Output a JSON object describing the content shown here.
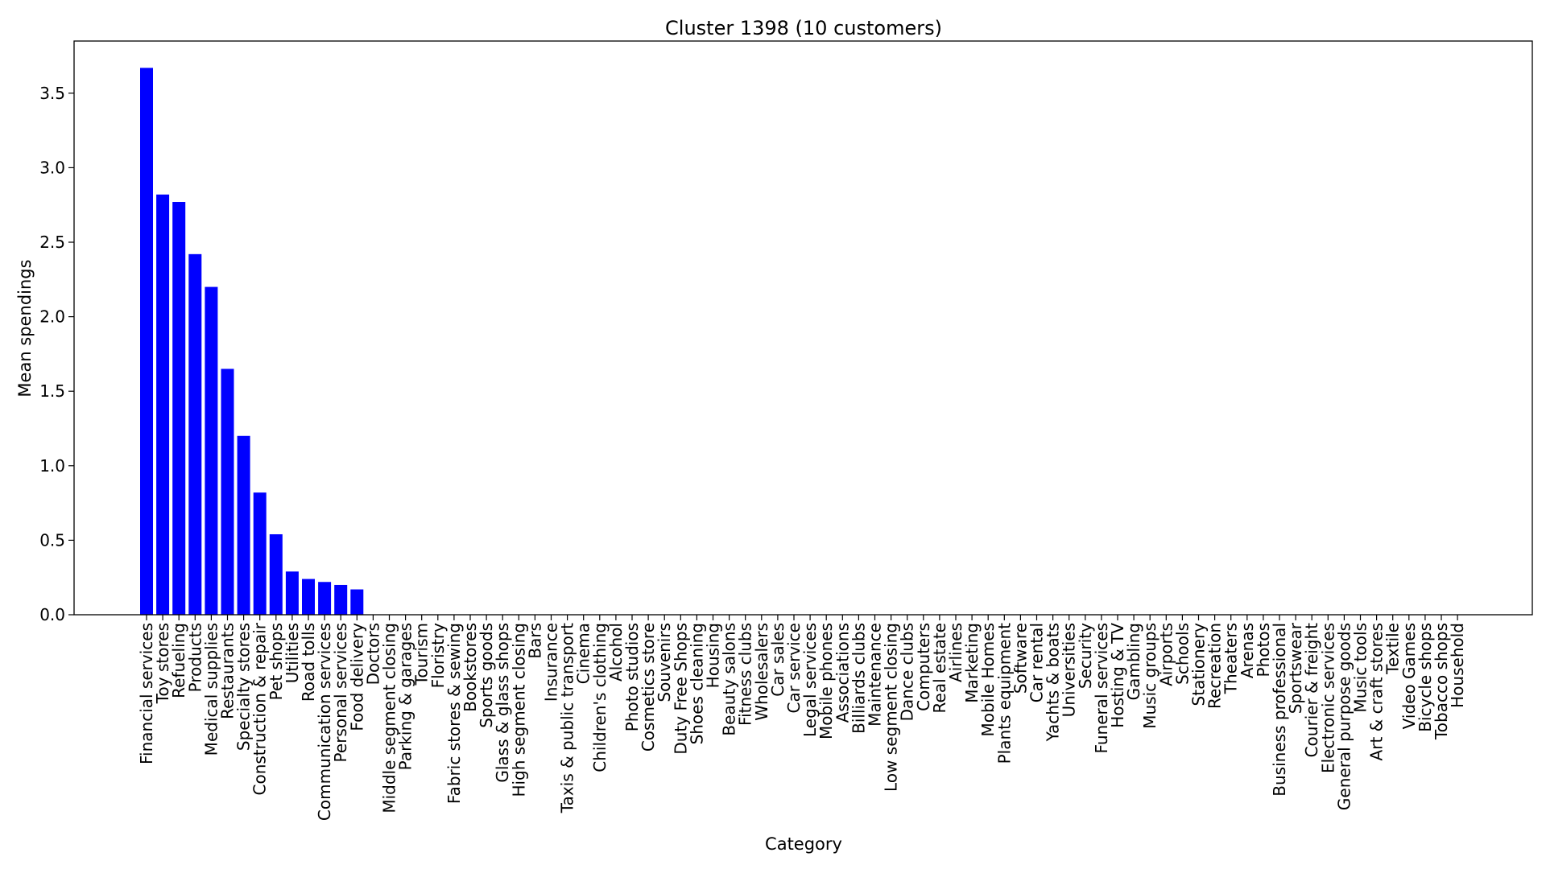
{
  "chart_data": {
    "type": "bar",
    "title": "Cluster 1398 (10 customers)",
    "xlabel": "Category",
    "ylabel": "Mean spendings",
    "ylim": [
      0,
      3.85
    ],
    "yticks": [
      "0.0",
      "0.5",
      "1.0",
      "1.5",
      "2.0",
      "2.5",
      "3.0",
      "3.5"
    ],
    "bar_color": "#0000ff",
    "grid": false,
    "categories": [
      "Financial services",
      "Toy stores",
      "Refueling",
      "Products",
      "Medical supplies",
      "Restaurants",
      "Specialty stores",
      "Construction & repair",
      "Pet shops",
      "Utilities",
      "Road tolls",
      "Communication services",
      "Personal services",
      "Food delivery",
      "Doctors",
      "Middle segment closing",
      "Parking & garages",
      "Tourism",
      "Floristry",
      "Fabric stores & sewing",
      "Bookstores",
      "Sports goods",
      "Glass & glass shops",
      "High segment closing",
      "Bars",
      "Insurance",
      "Taxis & public transport",
      "Cinema",
      "Children's clothing",
      "Alcohol",
      "Photo studios",
      "Cosmetics store",
      "Souvenirs",
      "Duty Free Shops",
      "Shoes cleaning",
      "Housing",
      "Beauty salons",
      "Fitness clubs",
      "Wholesalers",
      "Car sales",
      "Car service",
      "Legal services",
      "Mobile phones",
      "Associations",
      "Billiards clubs",
      "Maintenance",
      "Low segment closing",
      "Dance clubs",
      "Computers",
      "Real estate",
      "Airlines",
      "Marketing",
      "Mobile Homes",
      "Plants equipment",
      "Software",
      "Car rental",
      "Yachts & boats",
      "Universities",
      "Security",
      "Funeral services",
      "Hosting & TV",
      "Gambling",
      "Music groups",
      "Airports",
      "Schools",
      "Stationery",
      "Recreation",
      "Theaters",
      "Arenas",
      "Photos",
      "Business professional",
      "Sportswear",
      "Courier & freight",
      "Electronic services",
      "General purpose goods",
      "Music tools",
      "Art & craft stores",
      "Textile",
      "Video Games",
      "Bicycle shops",
      "Tobacco shops",
      "Household"
    ],
    "values": [
      3.67,
      2.82,
      2.77,
      2.42,
      2.2,
      1.65,
      1.2,
      0.82,
      0.54,
      0.29,
      0.24,
      0.22,
      0.2,
      0.17,
      0,
      0,
      0,
      0,
      0,
      0,
      0,
      0,
      0,
      0,
      0,
      0,
      0,
      0,
      0,
      0,
      0,
      0,
      0,
      0,
      0,
      0,
      0,
      0,
      0,
      0,
      0,
      0,
      0,
      0,
      0,
      0,
      0,
      0,
      0,
      0,
      0,
      0,
      0,
      0,
      0,
      0,
      0,
      0,
      0,
      0,
      0,
      0,
      0,
      0,
      0,
      0,
      0,
      0,
      0,
      0,
      0,
      0,
      0,
      0,
      0,
      0,
      0,
      0,
      0,
      0,
      0,
      0
    ]
  }
}
